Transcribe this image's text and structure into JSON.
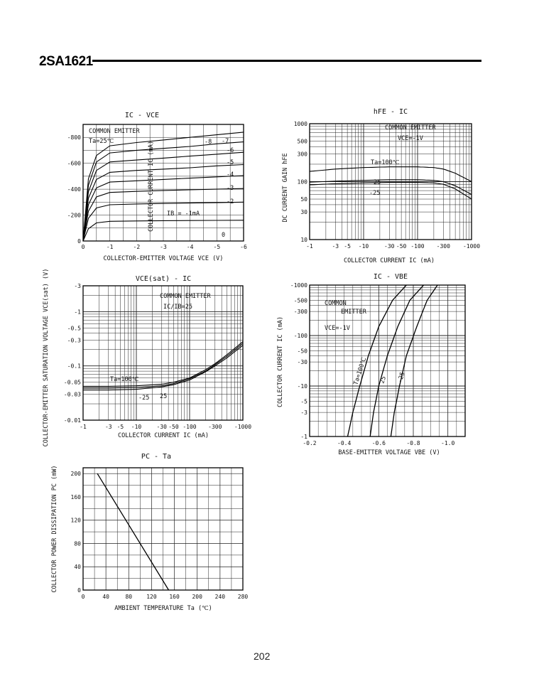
{
  "document": {
    "title": "2SA1621",
    "page_number": "202"
  },
  "charts": {
    "ic_vce": {
      "title": "IC - VCE",
      "xlabel": "COLLECTOR-EMITTER VOLTAGE  VCE  (V)",
      "ylabel": "COLLECTOR CURRENT  IC  (mA)",
      "xticks": [
        "0",
        "-1",
        "-2",
        "-3",
        "-4",
        "-5",
        "-6"
      ],
      "yticks": [
        "0",
        "-200",
        "-400",
        "-600",
        "-800"
      ],
      "legend": [
        "COMMON EMITTER",
        "Ta=25℃"
      ],
      "annotation": "IB = -1mA",
      "curve_labels": [
        "-8",
        "-7",
        "-6",
        "-5",
        "-4",
        "-3",
        "-2",
        "0"
      ]
    },
    "hfe_ic": {
      "title": "hFE - IC",
      "xlabel": "COLLECTOR CURRENT  IC  (mA)",
      "ylabel": "DC CURRENT GAIN  hFE",
      "xticks": [
        "-1",
        "-3",
        "-5",
        "-10",
        "-30",
        "-50",
        "-100",
        "-300",
        "-1000"
      ],
      "yticks": [
        "10",
        "30",
        "50",
        "100",
        "300",
        "500",
        "1000"
      ],
      "legend": [
        "COMMON EMITTER",
        "VCE=-1V"
      ],
      "curve_labels": [
        "Ta=100℃",
        "25",
        "-25"
      ]
    },
    "vcesat_ic": {
      "title": "VCE(sat) - IC",
      "xlabel": "COLLECTOR CURRENT  IC  (mA)",
      "ylabel": "COLLECTOR-EMITTER SATURATION VOLTAGE  VCE(sat)  (V)",
      "xticks": [
        "-1",
        "-3",
        "-5",
        "-10",
        "-30",
        "-50",
        "-100",
        "-300",
        "-1000"
      ],
      "yticks": [
        "-0.01",
        "-0.03",
        "-0.05",
        "-0.1",
        "-0.3",
        "-0.5",
        "-1",
        "-3"
      ],
      "legend": [
        "COMMON EMITTER",
        "IC/IB=25"
      ],
      "curve_labels": [
        "Ta=100℃",
        "-25",
        "25"
      ]
    },
    "ic_vbe": {
      "title": "IC - VBE",
      "xlabel": "BASE-EMITTER VOLTAGE  VBE  (V)",
      "ylabel": "COLLECTOR CURRENT  IC  (mA)",
      "xticks": [
        "-0.2",
        "-0.4",
        "-0.6",
        "-0.8",
        "-1.0"
      ],
      "yticks": [
        "-1",
        "-3",
        "-5",
        "-10",
        "-30",
        "-50",
        "-100",
        "-300",
        "-500",
        "-1000"
      ],
      "legend": [
        "COMMON",
        "EMITTER",
        "VCE=-1V"
      ],
      "curve_labels": [
        "Ta=100℃",
        "25",
        "-25"
      ]
    },
    "pc_ta": {
      "title": "PC - Ta",
      "xlabel": "AMBIENT TEMPERATURE  Ta  (℃)",
      "ylabel": "COLLECTOR POWER DISSIPATION  PC  (mW)",
      "xticks": [
        "0",
        "40",
        "80",
        "120",
        "160",
        "200",
        "240",
        "280"
      ],
      "yticks": [
        "0",
        "40",
        "80",
        "120",
        "160",
        "200"
      ]
    }
  },
  "chart_data": [
    {
      "type": "line",
      "title": "IC - VCE",
      "xlabel": "COLLECTOR-EMITTER VOLTAGE VCE (V)",
      "ylabel": "COLLECTOR CURRENT IC (mA)",
      "xlim": [
        0,
        -6
      ],
      "ylim": [
        0,
        -900
      ],
      "series": [
        {
          "name": "-8",
          "x": [
            0,
            -0.2,
            -0.5,
            -1,
            -2,
            -3,
            -4,
            -5,
            -6
          ],
          "y": [
            0,
            -480,
            -660,
            -735,
            -760,
            -780,
            -800,
            -820,
            -840
          ]
        },
        {
          "name": "-7",
          "x": [
            0,
            -0.2,
            -0.5,
            -1,
            -2,
            -3,
            -4,
            -5,
            -6
          ],
          "y": [
            0,
            -430,
            -610,
            -680,
            -700,
            -715,
            -730,
            -750,
            -765
          ]
        },
        {
          "name": "-6",
          "x": [
            0,
            -0.2,
            -0.5,
            -1,
            -2,
            -3,
            -4,
            -5,
            -6
          ],
          "y": [
            0,
            -380,
            -545,
            -610,
            -625,
            -640,
            -655,
            -670,
            -685
          ]
        },
        {
          "name": "-5",
          "x": [
            0,
            -0.2,
            -0.5,
            -1,
            -2,
            -3,
            -4,
            -5,
            -6
          ],
          "y": [
            0,
            -330,
            -475,
            -530,
            -545,
            -555,
            -565,
            -580,
            -590
          ]
        },
        {
          "name": "-4",
          "x": [
            0,
            -0.2,
            -0.5,
            -1,
            -2,
            -3,
            -4,
            -5,
            -6
          ],
          "y": [
            0,
            -280,
            -410,
            -455,
            -465,
            -475,
            -485,
            -495,
            -505
          ]
        },
        {
          "name": "-3",
          "x": [
            0,
            -0.2,
            -0.5,
            -1,
            -2,
            -3,
            -4,
            -5,
            -6
          ],
          "y": [
            0,
            -230,
            -340,
            -375,
            -383,
            -390,
            -395,
            -400,
            -405
          ]
        },
        {
          "name": "-2",
          "x": [
            0,
            -0.2,
            -0.5,
            -1,
            -2,
            -3,
            -4,
            -5,
            -6
          ],
          "y": [
            0,
            -175,
            -255,
            -280,
            -286,
            -290,
            -293,
            -296,
            -300
          ]
        },
        {
          "name": "-1",
          "x": [
            0,
            -0.2,
            -0.5,
            -1,
            -2,
            -3,
            -4,
            -5,
            -6
          ],
          "y": [
            0,
            -95,
            -140,
            -152,
            -155,
            -157,
            -158,
            -159,
            -160
          ]
        },
        {
          "name": "0",
          "x": [
            0,
            -6
          ],
          "y": [
            0,
            0
          ]
        }
      ]
    },
    {
      "type": "line",
      "title": "hFE - IC",
      "xlabel": "COLLECTOR CURRENT IC (mA)",
      "ylabel": "DC CURRENT GAIN hFE",
      "xscale": "log",
      "yscale": "log",
      "xlim": [
        -1,
        -1000
      ],
      "ylim": [
        10,
        1000
      ],
      "series": [
        {
          "name": "Ta=100℃",
          "x": [
            -1,
            -3,
            -10,
            -30,
            -100,
            -200,
            -300,
            -500,
            -1000
          ],
          "y": [
            150,
            165,
            175,
            180,
            180,
            175,
            165,
            140,
            100
          ]
        },
        {
          "name": "25",
          "x": [
            -1,
            -3,
            -10,
            -30,
            -100,
            -200,
            -300,
            -500,
            -1000
          ],
          "y": [
            98,
            102,
            105,
            108,
            108,
            105,
            100,
            85,
            60
          ]
        },
        {
          "name": "-25",
          "x": [
            -1,
            -3,
            -10,
            -30,
            -100,
            -200,
            -300,
            -500,
            -1000
          ],
          "y": [
            88,
            92,
            95,
            97,
            97,
            95,
            90,
            75,
            50
          ]
        }
      ]
    },
    {
      "type": "line",
      "title": "VCE(sat) - IC",
      "xlabel": "COLLECTOR CURRENT IC (mA)",
      "ylabel": "COLLECTOR-EMITTER SATURATION VOLTAGE VCE(sat) (V)",
      "xscale": "log",
      "yscale": "log",
      "xlim": [
        -1,
        -1000
      ],
      "ylim": [
        -0.01,
        -3
      ],
      "series": [
        {
          "name": "Ta=100℃",
          "x": [
            -1,
            -3,
            -10,
            -30,
            -50,
            -100,
            -200,
            -300,
            -500,
            -1000
          ],
          "y": [
            -0.042,
            -0.042,
            -0.043,
            -0.046,
            -0.05,
            -0.06,
            -0.085,
            -0.11,
            -0.16,
            -0.28
          ]
        },
        {
          "name": "25",
          "x": [
            -1,
            -3,
            -10,
            -30,
            -50,
            -100,
            -200,
            -300,
            -500,
            -1000
          ],
          "y": [
            -0.039,
            -0.039,
            -0.04,
            -0.043,
            -0.047,
            -0.058,
            -0.08,
            -0.105,
            -0.15,
            -0.26
          ]
        },
        {
          "name": "-25",
          "x": [
            -1,
            -3,
            -10,
            -30,
            -50,
            -100,
            -200,
            -300,
            -500,
            -1000
          ],
          "y": [
            -0.036,
            -0.036,
            -0.037,
            -0.041,
            -0.045,
            -0.055,
            -0.078,
            -0.1,
            -0.14,
            -0.24
          ]
        }
      ]
    },
    {
      "type": "line",
      "title": "IC - VBE",
      "xlabel": "BASE-EMITTER VOLTAGE VBE (V)",
      "ylabel": "COLLECTOR CURRENT IC (mA)",
      "yscale": "log",
      "xlim": [
        -0.2,
        -1.1
      ],
      "ylim": [
        -1,
        -1000
      ],
      "series": [
        {
          "name": "Ta=100℃",
          "x": [
            -0.42,
            -0.45,
            -0.49,
            -0.54,
            -0.6,
            -0.68,
            -0.76
          ],
          "y": [
            -1,
            -3,
            -10,
            -40,
            -150,
            -500,
            -1000
          ]
        },
        {
          "name": "25",
          "x": [
            -0.55,
            -0.57,
            -0.6,
            -0.65,
            -0.71,
            -0.78,
            -0.86
          ],
          "y": [
            -1,
            -3,
            -10,
            -40,
            -150,
            -500,
            -1000
          ]
        },
        {
          "name": "-25",
          "x": [
            -0.67,
            -0.69,
            -0.72,
            -0.76,
            -0.82,
            -0.88,
            -0.94
          ],
          "y": [
            -1,
            -3,
            -10,
            -40,
            -150,
            -500,
            -1000
          ]
        }
      ]
    },
    {
      "type": "line",
      "title": "PC - Ta",
      "xlabel": "AMBIENT TEMPERATURE Ta (℃)",
      "ylabel": "COLLECTOR POWER DISSIPATION PC (mW)",
      "xlim": [
        0,
        280
      ],
      "ylim": [
        0,
        210
      ],
      "series": [
        {
          "name": "PC",
          "x": [
            25,
            150
          ],
          "y": [
            200,
            0
          ]
        }
      ]
    }
  ]
}
